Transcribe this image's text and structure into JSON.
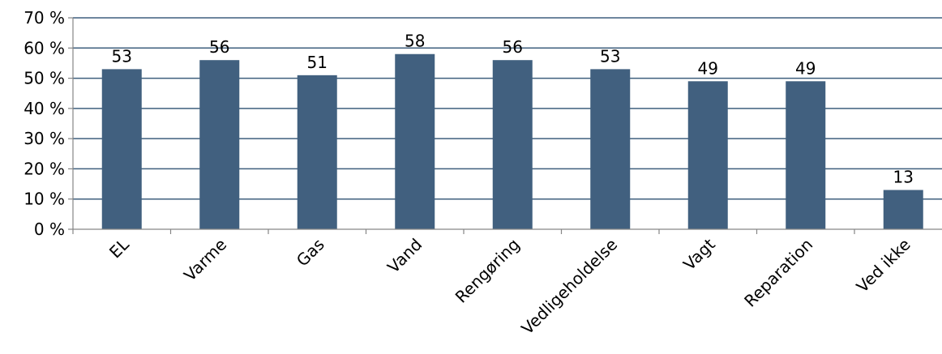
{
  "chart_data": {
    "type": "bar",
    "categories": [
      "EL",
      "Varme",
      "Gas",
      "Vand",
      "Rengøring",
      "Vedligeholdelse",
      "Vagt",
      "Reparation",
      "Ved ikke"
    ],
    "values": [
      53,
      56,
      51,
      58,
      56,
      53,
      49,
      49,
      13
    ],
    "data_labels": [
      "53",
      "56",
      "51",
      "58",
      "56",
      "53",
      "49",
      "49",
      "13"
    ],
    "ylim": [
      0,
      70
    ],
    "y_ticks": [
      0,
      10,
      20,
      30,
      40,
      50,
      60,
      70
    ],
    "y_tick_labels": [
      "0 %",
      "10 %",
      "20 %",
      "30 %",
      "40 %",
      "50 %",
      "60 %",
      "70 %"
    ],
    "title": "",
    "xlabel": "",
    "ylabel": "",
    "grid": true,
    "legend": "none",
    "bar_color": "#41607f",
    "grid_color": "#3f5f7e",
    "axis_color": "#868686"
  }
}
